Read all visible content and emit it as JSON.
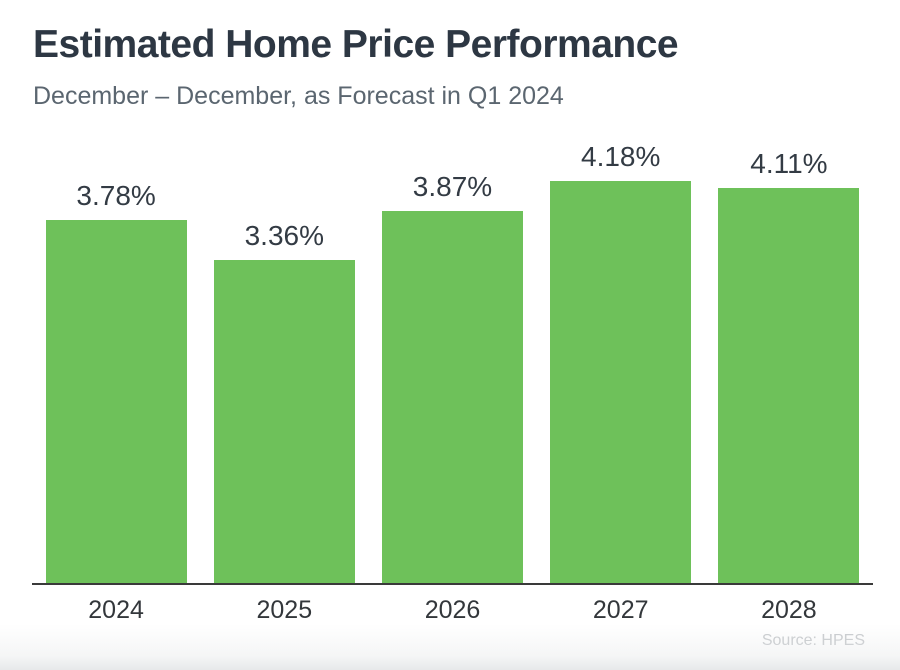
{
  "chart_data": {
    "type": "bar",
    "title": "Estimated Home Price Performance",
    "subtitle": "December – December, as Forecast in Q1 2024",
    "categories": [
      "2024",
      "2025",
      "2026",
      "2027",
      "2028"
    ],
    "values": [
      3.78,
      3.36,
      3.87,
      4.18,
      4.11
    ],
    "value_labels": [
      "3.78%",
      "3.36%",
      "3.87%",
      "4.18%",
      "4.11%"
    ],
    "xlabel": "",
    "ylabel": "",
    "ylim": [
      0,
      4.6
    ],
    "grid": false,
    "legend": "none",
    "bar_color": "#6ec15a",
    "axis_color": "#3a3a3a",
    "source": "Source: HPES"
  }
}
